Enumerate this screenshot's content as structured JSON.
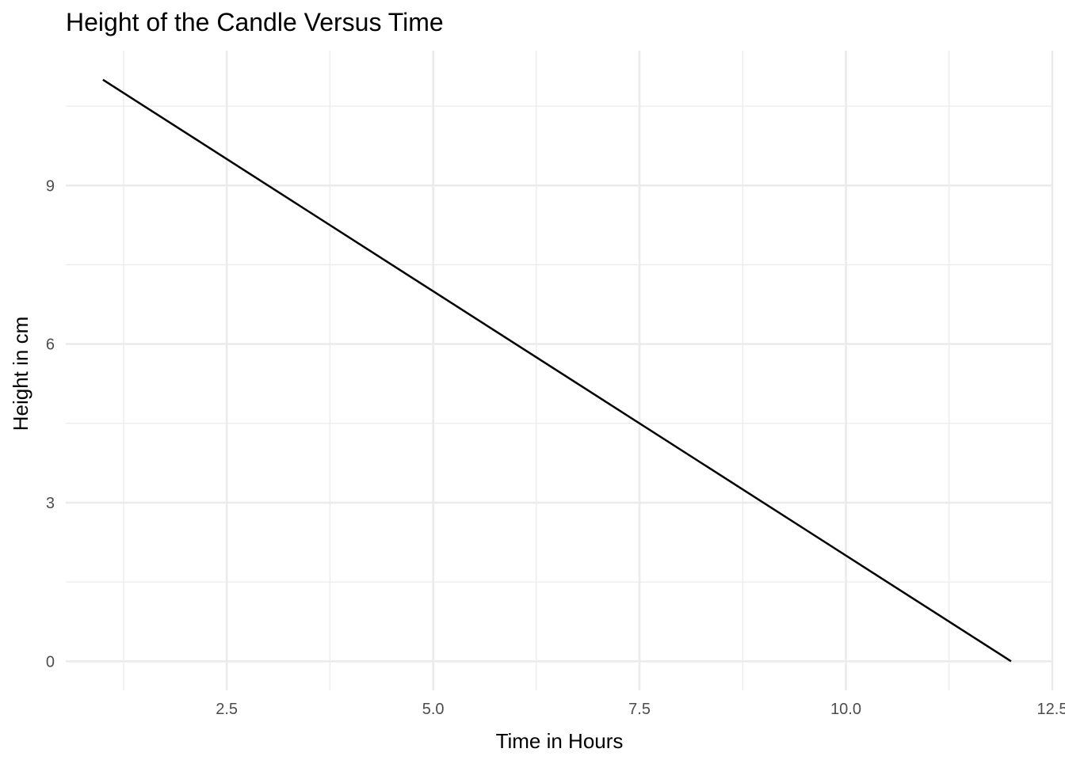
{
  "chart_data": {
    "type": "line",
    "title": "Height of the Candle Versus Time",
    "xlabel": "Time in Hours",
    "ylabel": "Height in cm",
    "x": [
      1,
      12
    ],
    "series": [
      {
        "values": [
          11,
          0
        ]
      }
    ],
    "xlim": [
      0.55,
      12.5
    ],
    "ylim": [
      -0.55,
      11.55
    ],
    "x_ticks": [
      2.5,
      5.0,
      7.5,
      10.0,
      12.5
    ],
    "x_tick_labels": [
      "2.5",
      "5.0",
      "7.5",
      "10.0",
      "12.5"
    ],
    "y_ticks": [
      0,
      3,
      6,
      9
    ],
    "y_tick_labels": [
      "0",
      "3",
      "6",
      "9"
    ],
    "x_minor_ticks": [
      1.25,
      3.75,
      6.25,
      8.75,
      11.25
    ],
    "y_minor_ticks": [
      1.5,
      4.5,
      7.5,
      10.5
    ],
    "grid": true,
    "legend": "none",
    "line_color": "#000000",
    "grid_color": "#ebebeb"
  }
}
